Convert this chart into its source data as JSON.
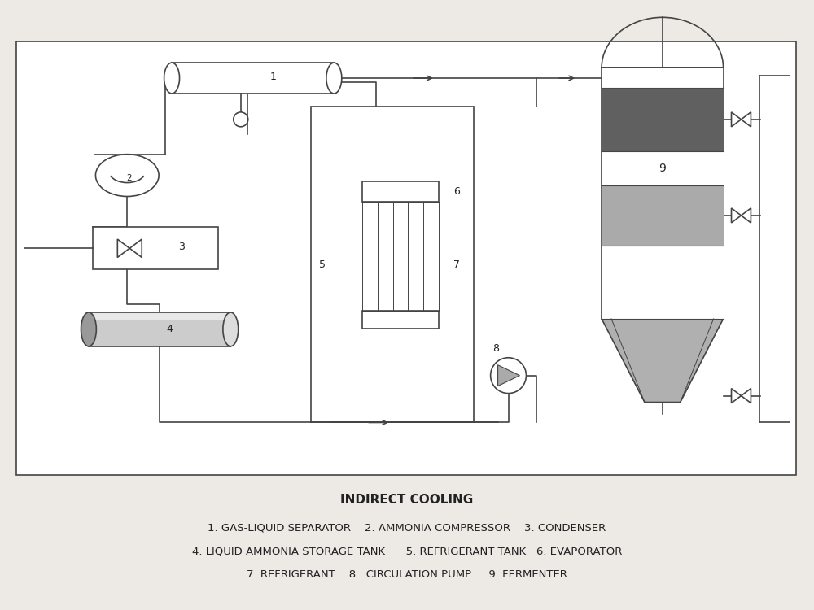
{
  "title": "INDIRECT COOLING",
  "legend_lines": [
    "1. GAS-LIQUID SEPARATOR    2. AMMONIA COMPRESSOR    3. CONDENSER",
    "4. LIQUID AMMONIA STORAGE TANK      5. REFRIGERANT TANK   6. EVAPORATOR",
    "7. REFRIGERANT    8.  CIRCULATION PUMP     9. FERMENTER"
  ],
  "bg_color": "#edeae5",
  "line_color": "#444444",
  "dark_band_color": "#606060",
  "mid_band_color": "#aaaaaa",
  "cone_color": "#b0b0b0",
  "font_color": "#222222",
  "title_fontsize": 11,
  "legend_fontsize": 9.5
}
